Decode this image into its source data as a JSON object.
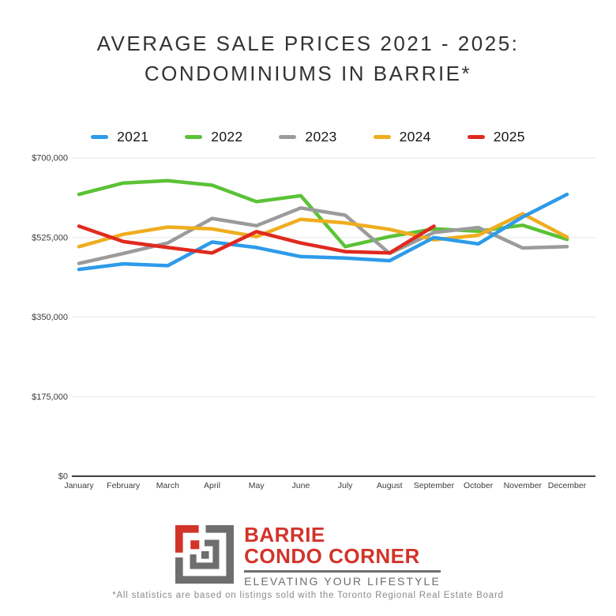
{
  "title": {
    "line1": "AVERAGE SALE PRICES 2021 - 2025:",
    "line2": "CONDOMINIUMS IN BARRIE*"
  },
  "chart_data": {
    "type": "line",
    "x": [
      "January",
      "February",
      "March",
      "April",
      "May",
      "June",
      "July",
      "August",
      "September",
      "October",
      "November",
      "December"
    ],
    "ylim": [
      0,
      700000
    ],
    "grid": true,
    "legend_position": "top",
    "y_ticks": [
      {
        "value": 700000,
        "label": "$700,000"
      },
      {
        "value": 525000,
        "label": "$525,000"
      },
      {
        "value": 350000,
        "label": "$350,000"
      },
      {
        "value": 175000,
        "label": "$175,000"
      },
      {
        "value": 0,
        "label": "$0"
      }
    ],
    "series": [
      {
        "name": "2021",
        "color": "#2D9BE9",
        "values": [
          455000,
          467000,
          463000,
          515000,
          503000,
          483000,
          480000,
          474000,
          525000,
          511000,
          570000,
          620000
        ]
      },
      {
        "name": "2022",
        "color": "#5BC236",
        "values": [
          620000,
          645000,
          650000,
          640000,
          604000,
          617000,
          505000,
          527000,
          544000,
          539000,
          552000,
          521000
        ]
      },
      {
        "name": "2023",
        "color": "#9B9B9B",
        "values": [
          468000,
          490000,
          513000,
          567000,
          551000,
          590000,
          574000,
          490000,
          536000,
          547000,
          502000,
          505000
        ]
      },
      {
        "name": "2024",
        "color": "#EFAD1F",
        "values": [
          505000,
          532000,
          548000,
          544000,
          527000,
          565000,
          557000,
          543000,
          520000,
          530000,
          577000,
          526000
        ]
      },
      {
        "name": "2025",
        "color": "#E02A1F",
        "values": [
          550000,
          516000,
          503000,
          491000,
          538000,
          513000,
          494000,
          491000,
          550000,
          null,
          null,
          null
        ]
      }
    ],
    "colors": {
      "gridline": "#ebebeb",
      "baseline": "#404040",
      "axis_label": "#3c3c3c"
    }
  },
  "logo": {
    "name_line1": "BARRIE",
    "name_line2": "CONDO CORNER",
    "tagline": "ELEVATING YOUR LIFESTYLE",
    "accent_color": "#D2342A",
    "gray_color": "#6E6E6E"
  },
  "footnote": "*All statistics are based on listings sold with the Toronto Regional Real Estate Board"
}
